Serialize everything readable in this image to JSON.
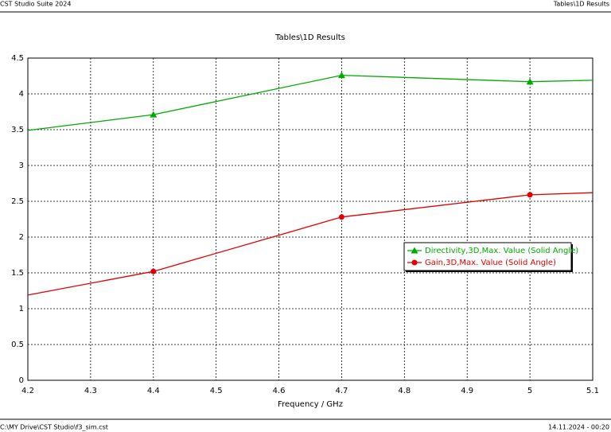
{
  "header": {
    "left": "CST Studio Suite 2024",
    "right": "Tables\\1D Results"
  },
  "footer": {
    "left": "C:\\MY Drive\\CST Studio\\f3_sim.cst",
    "right": "14.11.2024 - 00:20"
  },
  "chart_data": {
    "type": "line",
    "title": "Tables\\1D Results",
    "x_label": "Frequency / GHz",
    "x": [
      4.2,
      4.4,
      4.7,
      5.0,
      5.1
    ],
    "series": [
      {
        "name": "Directivity,3D,Max. Value (Solid Angle)",
        "color": "#00aa00",
        "marker": "triangle",
        "values": [
          3.49,
          3.71,
          4.26,
          4.17,
          4.19
        ]
      },
      {
        "name": "Gain,3D,Max. Value (Solid Angle)",
        "color": "#e00000",
        "marker": "circle",
        "values": [
          1.19,
          1.52,
          2.28,
          2.59,
          2.62
        ]
      }
    ],
    "xlim": [
      4.2,
      5.1
    ],
    "xticks": [
      4.2,
      4.3,
      4.4,
      4.5,
      4.6,
      4.7,
      4.8,
      4.9,
      5,
      5.1
    ],
    "ylim": [
      0,
      4.5
    ],
    "yticks": [
      0,
      0.5,
      1,
      1.5,
      2,
      2.5,
      3,
      3.5,
      4,
      4.5
    ],
    "grid": true,
    "legend": "right"
  }
}
